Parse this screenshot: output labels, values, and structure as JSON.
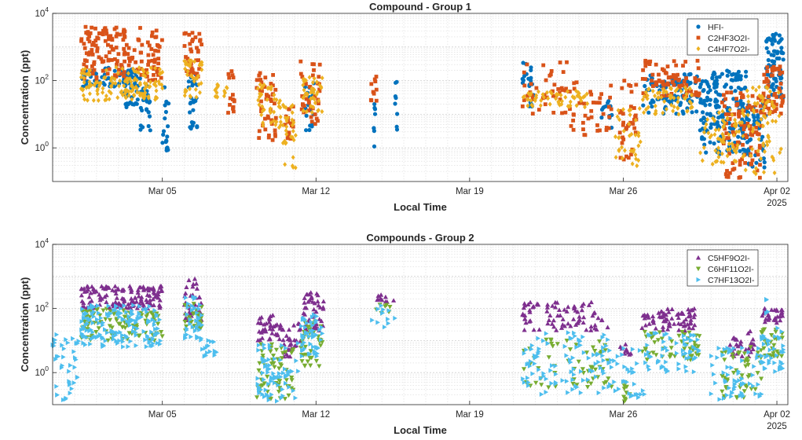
{
  "chart_data": [
    {
      "type": "scatter",
      "title": "Compound - Group 1",
      "xlabel": "Local Time",
      "ylabel": "Concentration (ppt)",
      "yscale": "log",
      "ylim_exp": [
        -1,
        4
      ],
      "x_days": [
        -1,
        32.5
      ],
      "xticks": [
        {
          "day": 4,
          "label": "Mar 05",
          "sub": ""
        },
        {
          "day": 11,
          "label": "Mar 12",
          "sub": ""
        },
        {
          "day": 18,
          "label": "Mar 19",
          "sub": ""
        },
        {
          "day": 25,
          "label": "Mar 26",
          "sub": ""
        },
        {
          "day": 32,
          "label": "Apr 02",
          "sub": "2025"
        }
      ],
      "ytick_labels": [
        {
          "base": "10",
          "exp": "0",
          "value": 1
        },
        {
          "base": "10",
          "exp": "2",
          "value": 100
        },
        {
          "base": "10",
          "exp": "4",
          "value": 10000
        }
      ],
      "grid": true,
      "legend_position": "top-right",
      "series": [
        {
          "name": "HFI-",
          "marker": "circle",
          "color": "#0072BD",
          "clusters": [
            [
              0.3,
              3.0,
              1.8,
              2.4,
              60
            ],
            [
              2.2,
              2.9,
              1.2,
              2.3,
              40
            ],
            [
              3.0,
              3.5,
              0.5,
              2.0,
              25
            ],
            [
              4.0,
              4.3,
              -0.4,
              2.0,
              20
            ],
            [
              5.2,
              5.6,
              0.4,
              2.2,
              25
            ],
            [
              10.5,
              10.9,
              0.5,
              2.0,
              20
            ],
            [
              13.6,
              13.7,
              0.0,
              2.2,
              8
            ],
            [
              14.6,
              14.7,
              0.5,
              2.3,
              8
            ],
            [
              20.4,
              21.0,
              1.2,
              2.6,
              20
            ],
            [
              24.0,
              24.5,
              0.5,
              1.4,
              12
            ],
            [
              25.9,
              28.4,
              1.0,
              2.2,
              90
            ],
            [
              28.5,
              30.6,
              -0.2,
              2.3,
              180
            ],
            [
              30.6,
              31.5,
              -0.6,
              1.4,
              50
            ],
            [
              31.5,
              32.3,
              1.5,
              3.4,
              70
            ]
          ]
        },
        {
          "name": "C2HF3O2I-",
          "marker": "square",
          "color": "#D95319",
          "clusters": [
            [
              0.3,
              4.0,
              2.0,
              3.6,
              160
            ],
            [
              2.2,
              2.3,
              3.2,
              3.7,
              6
            ],
            [
              5.0,
              5.8,
              2.0,
              3.5,
              40
            ],
            [
              7.0,
              7.3,
              1.0,
              2.3,
              15
            ],
            [
              8.3,
              9.2,
              0.2,
              2.3,
              45
            ],
            [
              9.6,
              10.0,
              0.0,
              1.5,
              15
            ],
            [
              10.3,
              11.2,
              0.7,
              2.6,
              40
            ],
            [
              13.5,
              13.8,
              1.3,
              2.3,
              10
            ],
            [
              20.4,
              22.5,
              1.0,
              2.6,
              40
            ],
            [
              22.5,
              24.5,
              0.3,
              2.0,
              40
            ],
            [
              24.8,
              25.6,
              -0.4,
              2.1,
              35
            ],
            [
              25.8,
              28.5,
              1.5,
              2.6,
              80
            ],
            [
              29.5,
              31.3,
              -0.9,
              1.7,
              100
            ],
            [
              31.3,
              32.3,
              1.0,
              2.5,
              50
            ]
          ]
        },
        {
          "name": "C4HF7O2I-",
          "marker": "diamond",
          "color": "#EDB120",
          "clusters": [
            [
              0.3,
              4.0,
              1.4,
              2.4,
              140
            ],
            [
              5.0,
              5.8,
              1.5,
              2.6,
              40
            ],
            [
              6.4,
              7.0,
              1.5,
              1.9,
              15
            ],
            [
              8.3,
              9.4,
              0.6,
              1.9,
              40
            ],
            [
              9.4,
              10.1,
              -0.7,
              1.4,
              30
            ],
            [
              10.4,
              11.3,
              1.0,
              2.2,
              40
            ],
            [
              20.4,
              23.5,
              1.2,
              1.7,
              60
            ],
            [
              24.6,
              25.8,
              -0.6,
              1.4,
              35
            ],
            [
              25.8,
              28.3,
              1.0,
              1.8,
              60
            ],
            [
              28.5,
              30.5,
              -0.5,
              1.2,
              70
            ],
            [
              30.5,
              32.2,
              -0.8,
              1.9,
              70
            ]
          ]
        }
      ]
    },
    {
      "type": "scatter",
      "title": "Compounds - Group 2",
      "xlabel": "Local Time",
      "ylabel": "Concentration (ppt)",
      "yscale": "log",
      "ylim_exp": [
        -1,
        4
      ],
      "x_days": [
        -1,
        32.5
      ],
      "xticks": [
        {
          "day": 4,
          "label": "Mar 05",
          "sub": ""
        },
        {
          "day": 11,
          "label": "Mar 12",
          "sub": ""
        },
        {
          "day": 18,
          "label": "Mar 19",
          "sub": ""
        },
        {
          "day": 25,
          "label": "Mar 26",
          "sub": ""
        },
        {
          "day": 32,
          "label": "Apr 02",
          "sub": "2025"
        }
      ],
      "ytick_labels": [
        {
          "base": "10",
          "exp": "0",
          "value": 1
        },
        {
          "base": "10",
          "exp": "2",
          "value": 100
        },
        {
          "base": "10",
          "exp": "4",
          "value": 10000
        }
      ],
      "grid": true,
      "legend_position": "top-right",
      "series": [
        {
          "name": "C5HF9O2I-",
          "marker": "triangle-up",
          "color": "#7E2F8E",
          "clusters": [
            [
              0.3,
              4.0,
              2.0,
              2.7,
              140
            ],
            [
              5.0,
              5.8,
              1.6,
              3.0,
              40
            ],
            [
              8.3,
              9.4,
              1.0,
              1.8,
              40
            ],
            [
              9.4,
              10.3,
              0.5,
              1.6,
              30
            ],
            [
              10.4,
              11.4,
              1.3,
              2.5,
              50
            ],
            [
              13.5,
              14.6,
              2.2,
              2.5,
              10
            ],
            [
              20.4,
              24.3,
              1.3,
              2.2,
              80
            ],
            [
              24.8,
              25.4,
              0.5,
              0.9,
              10
            ],
            [
              25.8,
              28.3,
              1.3,
              2.0,
              70
            ],
            [
              29.8,
              31.0,
              0.5,
              1.3,
              30
            ],
            [
              31.3,
              32.3,
              1.5,
              2.0,
              30
            ]
          ]
        },
        {
          "name": "C6HF11O2I-",
          "marker": "triangle-down",
          "color": "#77AC30",
          "clusters": [
            [
              0.3,
              4.0,
              1.0,
              2.0,
              100
            ],
            [
              5.0,
              5.8,
              1.3,
              2.2,
              30
            ],
            [
              8.3,
              10.0,
              -0.9,
              0.9,
              60
            ],
            [
              10.3,
              11.3,
              0.2,
              1.6,
              40
            ],
            [
              13.6,
              14.6,
              1.8,
              2.2,
              8
            ],
            [
              20.4,
              24.5,
              -0.5,
              1.1,
              60
            ],
            [
              25.0,
              25.3,
              -0.9,
              -0.1,
              10
            ],
            [
              25.8,
              28.5,
              0.4,
              1.3,
              50
            ],
            [
              29.5,
              31.3,
              -0.8,
              0.8,
              50
            ],
            [
              31.3,
              32.3,
              0.5,
              1.4,
              30
            ]
          ]
        },
        {
          "name": "C7HF13O2I-",
          "marker": "triangle-right",
          "color": "#4DBEEE",
          "clusters": [
            [
              -1.0,
              0.2,
              -0.9,
              1.2,
              40
            ],
            [
              0.3,
              4.0,
              0.8,
              2.1,
              160
            ],
            [
              5.0,
              5.8,
              1.0,
              2.4,
              40
            ],
            [
              5.8,
              6.5,
              0.5,
              1.0,
              15
            ],
            [
              8.3,
              10.2,
              -0.9,
              1.0,
              70
            ],
            [
              10.3,
              11.3,
              0.5,
              1.9,
              50
            ],
            [
              13.5,
              14.6,
              1.3,
              2.1,
              12
            ],
            [
              20.4,
              24.5,
              -0.7,
              1.3,
              100
            ],
            [
              24.5,
              26.0,
              -0.8,
              0.8,
              30
            ],
            [
              26.0,
              28.5,
              0.0,
              1.3,
              60
            ],
            [
              29.0,
              31.3,
              -0.9,
              0.8,
              60
            ],
            [
              31.3,
              32.3,
              0.0,
              1.4,
              40
            ],
            [
              31.4,
              31.6,
              1.8,
              2.3,
              4
            ]
          ]
        }
      ]
    }
  ]
}
